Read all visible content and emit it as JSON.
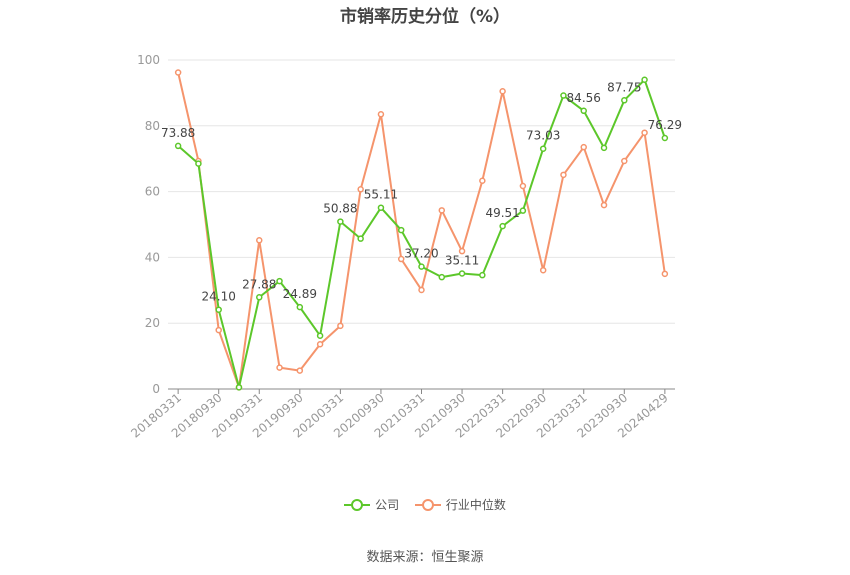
{
  "chart_data": {
    "type": "line",
    "title": "市销率历史分位（%）",
    "ylim": [
      0,
      100
    ],
    "y_ticks": [
      "0",
      "20",
      "40",
      "60",
      "80",
      "100"
    ],
    "x": [
      "20180331",
      "20180630",
      "20180930",
      "20181231",
      "20190331",
      "20190630",
      "20190930",
      "20191231",
      "20200331",
      "20200630",
      "20200930",
      "20201231",
      "20210331",
      "20210630",
      "20210930",
      "20211231",
      "20220331",
      "20220630",
      "20220930",
      "20221231",
      "20230331",
      "20230630",
      "20230930",
      "20231231",
      "20240429"
    ],
    "x_tick_labels": [
      "20180331",
      "20180930",
      "20190331",
      "20190930",
      "20200331",
      "20200930",
      "20210331",
      "20210930",
      "20220331",
      "20220930",
      "20230331",
      "20230930",
      "20240429"
    ],
    "grid": true,
    "legend_position": "bottom",
    "series": [
      {
        "name": "公司",
        "color": "#5cc72a",
        "values": [
          73.88,
          68.5,
          24.1,
          0.5,
          27.88,
          32.8,
          24.89,
          16.2,
          50.88,
          45.7,
          55.11,
          48.3,
          37.2,
          34.0,
          35.11,
          34.6,
          49.51,
          54.2,
          73.03,
          89.2,
          84.56,
          73.3,
          87.75,
          94.0,
          76.29
        ],
        "labels": {
          "0": "73.88",
          "2": "24.10",
          "4": "27.88",
          "6": "24.89",
          "8": "50.88",
          "10": "55.11",
          "12": "37.20",
          "14": "35.11",
          "16": "49.51",
          "18": "73.03",
          "20": "84.56",
          "22": "87.75",
          "24": "76.29"
        }
      },
      {
        "name": "行业中位数",
        "color": "#f5946c",
        "values": [
          96.2,
          69.3,
          17.9,
          0.5,
          45.2,
          6.5,
          5.6,
          13.6,
          19.2,
          60.7,
          83.5,
          39.5,
          30.1,
          54.3,
          41.9,
          63.3,
          90.5,
          61.7,
          36.1,
          65.1,
          73.5,
          55.9,
          69.3,
          77.9,
          35.0
        ]
      }
    ]
  },
  "source_text": "数据来源：恒生聚源"
}
